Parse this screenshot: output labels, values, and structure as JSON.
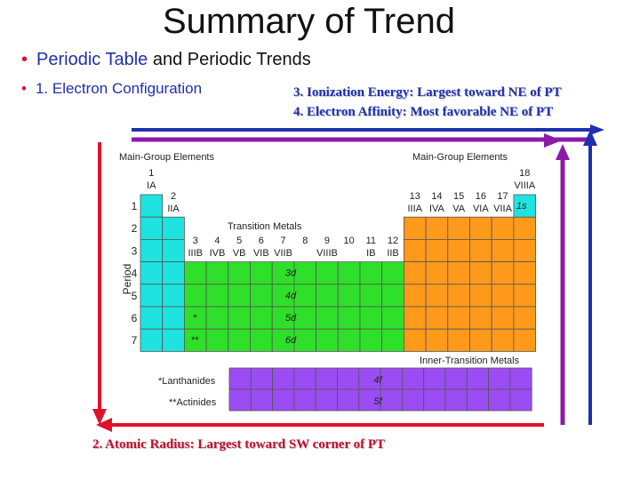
{
  "title": "Summary of Trend",
  "bullets": {
    "b1_pre": "Periodic Table",
    "b1_post": "and Periodic Trends",
    "b2": "1.  Electron Configuration"
  },
  "trends": {
    "ionization": "3. Ionization Energy: Largest toward NE of PT",
    "affinity": "4. Electron Affinity:   Most favorable NE of PT",
    "radius": "2.  Atomic Radius:  Largest toward SW corner of PT"
  },
  "table": {
    "main_group_left": "Main-Group Elements",
    "main_group_right": "Main-Group Elements",
    "transition": "Transition Metals",
    "inner_transition": "Inner-Transition Metals",
    "lanthanides": "*Lanthanides",
    "actinides": "**Actinides",
    "period_axis": "Period",
    "periods": [
      "1",
      "2",
      "3",
      "4",
      "5",
      "6",
      "7"
    ],
    "groups_left": [
      {
        "num": "1",
        "roman": "IA"
      },
      {
        "num": "2",
        "roman": "IIA"
      }
    ],
    "groups_transition": [
      {
        "num": "3",
        "roman": "IIIB"
      },
      {
        "num": "4",
        "roman": "IVB"
      },
      {
        "num": "5",
        "roman": "VB"
      },
      {
        "num": "6",
        "roman": "VIB"
      },
      {
        "num": "7",
        "roman": "VIIB"
      },
      {
        "num": "8",
        "roman": ""
      },
      {
        "num": "9",
        "roman": "VIIIB"
      },
      {
        "num": "10",
        "roman": ""
      },
      {
        "num": "11",
        "roman": "IB"
      },
      {
        "num": "12",
        "roman": "IIB"
      }
    ],
    "groups_right": [
      {
        "num": "13",
        "roman": "IIIA"
      },
      {
        "num": "14",
        "roman": "IVA"
      },
      {
        "num": "15",
        "roman": "VA"
      },
      {
        "num": "16",
        "roman": "VIA"
      },
      {
        "num": "17",
        "roman": "VIIA"
      }
    ],
    "group_18": {
      "num": "18",
      "roman": "VIIIA"
    },
    "block_labels": [
      "1s",
      "3d",
      "4d",
      "5d",
      "6d",
      "4f",
      "5f"
    ],
    "marks": {
      "star": "*",
      "double_star": "**"
    },
    "colors": {
      "s_block": "#1fe3df",
      "d_block": "#2fe02a",
      "p_block": "#ff9a1a",
      "f_block": "#9b4cf2",
      "axis_red": "#e0112b",
      "axis_purple": "#8c1aa8",
      "axis_blue": "#1f2fb0"
    }
  }
}
